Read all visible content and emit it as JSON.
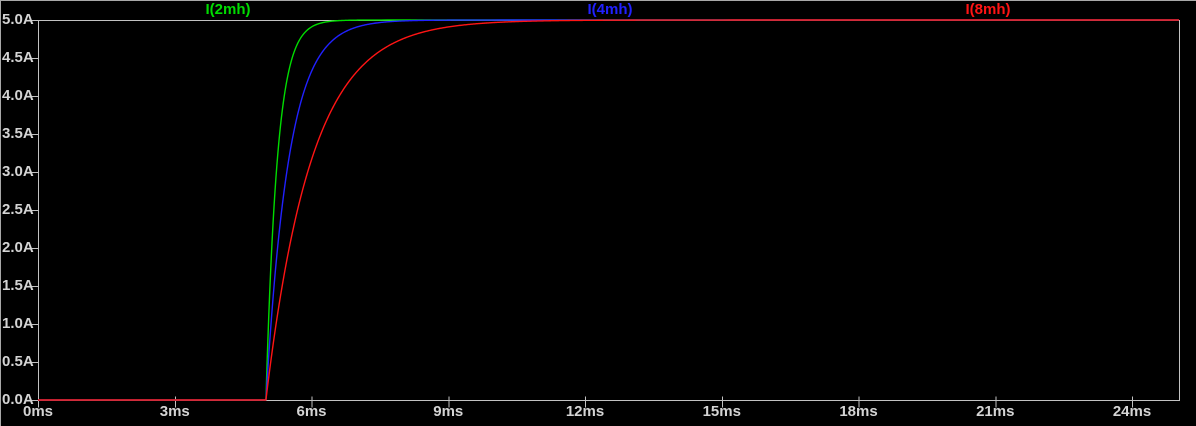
{
  "colors": {
    "background": "#000000",
    "axis_line": "#c2c2c2",
    "tick_text": "#d4d4d4",
    "frame": "#a8a8a8"
  },
  "chart_data": {
    "type": "line",
    "title": "",
    "grid": false,
    "legend_position": "top",
    "x_axis": {
      "unit": "ms",
      "min": 0,
      "max": 25,
      "tick_step_ms": 3,
      "tick_values_ms": [
        0,
        3,
        6,
        9,
        12,
        15,
        18,
        21,
        24
      ],
      "tick_labels": [
        "0ms",
        "3ms",
        "6ms",
        "9ms",
        "12ms",
        "15ms",
        "18ms",
        "21ms",
        "24ms"
      ]
    },
    "y_axis": {
      "unit": "A",
      "min": 0,
      "max": 5,
      "tick_step_A": 0.5,
      "tick_values_A": [
        5.0,
        4.5,
        4.0,
        3.5,
        3.0,
        2.5,
        2.0,
        1.5,
        1.0,
        0.5,
        0.0
      ],
      "tick_labels": [
        "5.0A",
        "4.5A",
        "4.0A",
        "3.5A",
        "3.0A",
        "2.5A",
        "2.0A",
        "1.5A",
        "1.0A",
        "0.5A",
        "0.0A"
      ]
    },
    "series": [
      {
        "name": "I(2mh)",
        "color": "#00dc00",
        "model": "exponential_rise",
        "start_ms": 5,
        "tau_ms": 0.25,
        "final_A": 5,
        "samples_ms_A": [
          [
            0,
            0
          ],
          [
            5,
            0
          ],
          [
            5.25,
            3.16
          ],
          [
            5.5,
            4.32
          ],
          [
            5.75,
            4.75
          ],
          [
            6,
            4.91
          ],
          [
            6.5,
            4.99
          ],
          [
            7,
            5.0
          ],
          [
            25,
            5.0
          ]
        ]
      },
      {
        "name": "I(4mh)",
        "color": "#2121ff",
        "model": "exponential_rise",
        "start_ms": 5,
        "tau_ms": 0.5,
        "final_A": 5,
        "samples_ms_A": [
          [
            0,
            0
          ],
          [
            5,
            0
          ],
          [
            5.5,
            3.16
          ],
          [
            6,
            4.32
          ],
          [
            6.5,
            4.75
          ],
          [
            7,
            4.91
          ],
          [
            8,
            4.99
          ],
          [
            9,
            5.0
          ],
          [
            25,
            5.0
          ]
        ]
      },
      {
        "name": "I(8mh)",
        "color": "#ff1414",
        "model": "exponential_rise",
        "start_ms": 5,
        "tau_ms": 1.0,
        "final_A": 5,
        "samples_ms_A": [
          [
            0,
            0
          ],
          [
            5,
            0
          ],
          [
            6,
            3.16
          ],
          [
            7,
            4.32
          ],
          [
            8,
            4.75
          ],
          [
            9,
            4.91
          ],
          [
            10,
            4.97
          ],
          [
            12,
            4.99
          ],
          [
            15,
            5.0
          ],
          [
            25,
            5.0
          ]
        ]
      }
    ]
  }
}
